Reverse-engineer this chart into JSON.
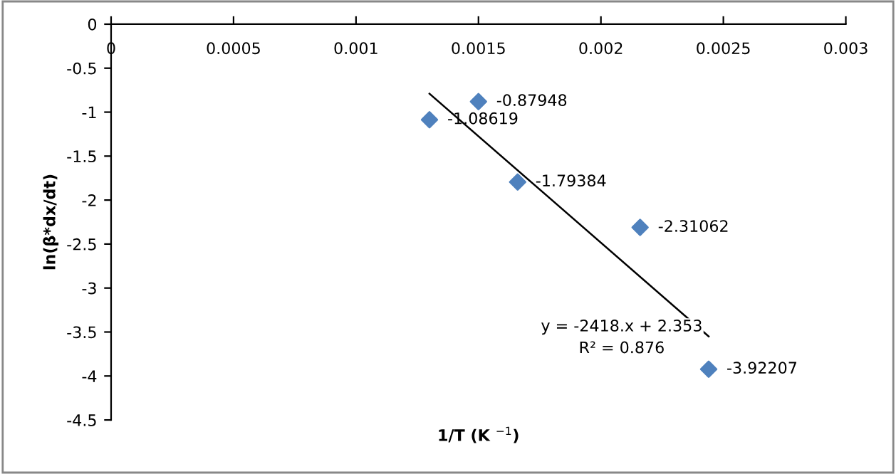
{
  "chart_data": {
    "type": "scatter",
    "xlabel": "1/T (K $^{−1}$)",
    "ylabel": "ln(β*dx/dt)",
    "x": [
      0.0013,
      0.0015,
      0.00166,
      0.00216,
      0.00244
    ],
    "series": [
      {
        "color": "#4f81bd",
        "marker": "diamond",
        "values": [
          -1.08619,
          -0.87948,
          -1.79384,
          -2.31062,
          -3.92207
        ],
        "data_labels": true
      },
      {
        "type": "line",
        "color": "#000000",
        "x": [
          0.0013,
          0.00244
        ],
        "values": [
          -0.79,
          -3.55
        ],
        "line_style": "solid",
        "marker": "none"
      }
    ],
    "annotations": [
      "y = -2418.x + 2.353",
      "R² = 0.876"
    ],
    "xlim": [
      0,
      0.003
    ],
    "xticks": [
      0,
      0.0005,
      0.001,
      0.0015,
      0.002,
      0.0025,
      0.003
    ],
    "ylim": [
      -4.5,
      0
    ],
    "yticks": [
      -4.5,
      -4,
      -3.5,
      -3,
      -2.5,
      -2,
      -1.5,
      -1,
      -0.5,
      0
    ],
    "grid": false,
    "legend": false
  }
}
